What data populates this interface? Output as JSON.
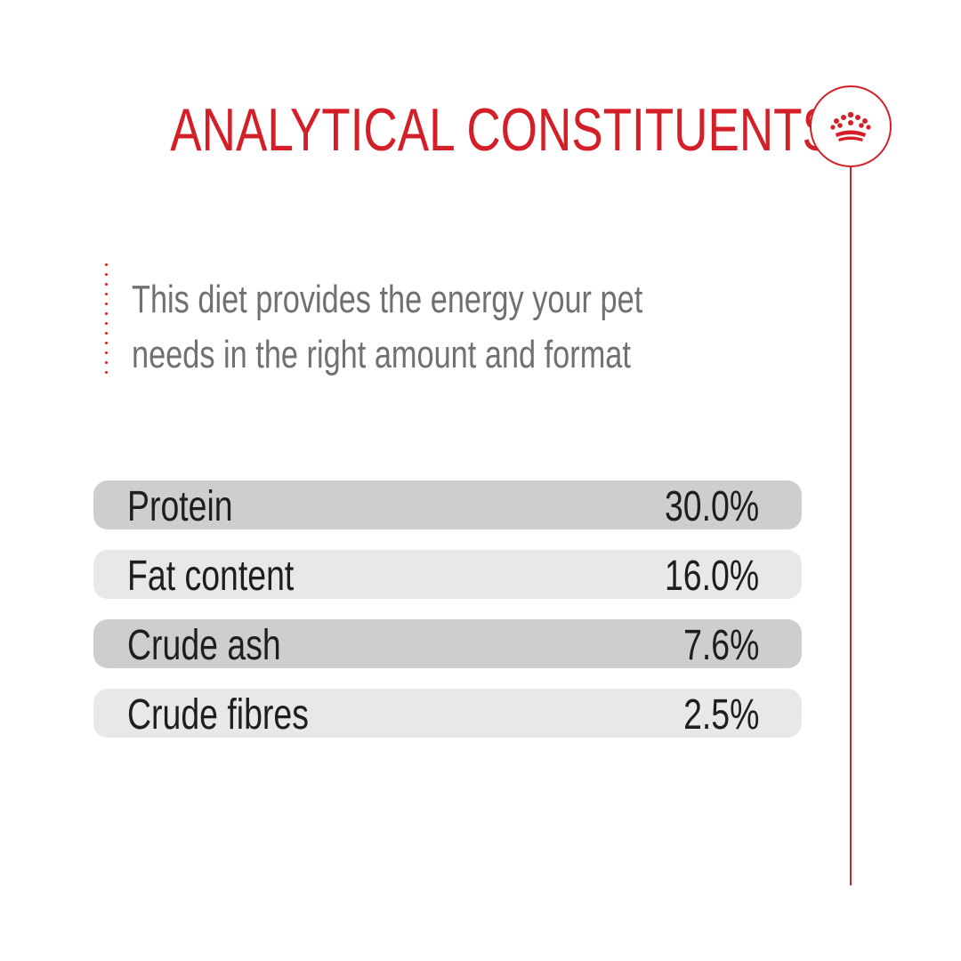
{
  "header": {
    "title": "ANALYTICAL CONSTITUENTS"
  },
  "brand": {
    "icon": "crown-icon",
    "accent_color": "#d51f28"
  },
  "intro": {
    "line1": "This diet provides the energy your pet",
    "line2": "needs in the right amount and format"
  },
  "constituents": [
    {
      "label": "Protein",
      "value": "30.0%"
    },
    {
      "label": "Fat content",
      "value": "16.0%"
    },
    {
      "label": "Crude ash",
      "value": "7.6%"
    },
    {
      "label": "Crude fibres",
      "value": "2.5%"
    }
  ],
  "colors": {
    "row_dark": "#cecece",
    "row_light": "#e8e8e8",
    "text_grey": "#707070",
    "text_dark": "#1e1e1e"
  }
}
